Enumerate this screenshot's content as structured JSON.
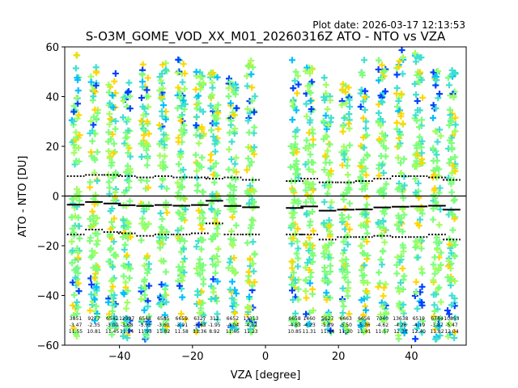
{
  "plot_date": "Plot date: 2026-03-17 12:13:53",
  "chart_data": {
    "type": "scatter",
    "title": "S-O3M_GOME_VOD_XX_M01_20260316Z ATO - NTO vs VZA",
    "xlabel": "VZA [degree]",
    "ylabel": "ATO - NTO [DU]",
    "xlim": [
      -55,
      55
    ],
    "ylim": [
      -60,
      60
    ],
    "xticks": [
      -40,
      -20,
      0,
      20,
      40
    ],
    "yticks": [
      -60,
      -40,
      -20,
      0,
      20,
      40,
      60
    ],
    "grid": false,
    "marker": "plus",
    "point_colors": [
      "#7cff79",
      "#ffd700",
      "#40e0d0",
      "#00bfff",
      "#0040ff",
      "#00008b",
      "#a0ff60"
    ],
    "bins": [
      {
        "x": -52,
        "count": "3851",
        "mean": "-3.47",
        "std": "11.55",
        "median": -3.5,
        "upper": 8.0,
        "lower": -15.5,
        "ymin": -58,
        "ymax": 57
      },
      {
        "x": -47,
        "count": "9277",
        "mean": "-2.35",
        "std": "10.81",
        "median": -2.4,
        "upper": 8.5,
        "lower": -13.5,
        "ymin": -52,
        "ymax": 52
      },
      {
        "x": -42,
        "count": "6542",
        "mean": "-3.00",
        "std": "11.45",
        "median": -3.0,
        "upper": 8.5,
        "lower": -14.5,
        "ymin": -56,
        "ymax": 53
      },
      {
        "x": -38,
        "count": "12997",
        "mean": "-3.68",
        "std": "11.54",
        "median": -3.7,
        "upper": 8.0,
        "lower": -15.0,
        "ymin": -58,
        "ymax": 46
      },
      {
        "x": -33,
        "count": "6548",
        "mean": "-3.95",
        "std": "11.93",
        "median": -4.0,
        "upper": 7.5,
        "lower": -16.0,
        "ymin": -58,
        "ymax": 55
      },
      {
        "x": -28,
        "count": "6585",
        "mean": "-3.60",
        "std": "11.82",
        "median": -3.6,
        "upper": 8.0,
        "lower": -15.5,
        "ymin": -55,
        "ymax": 54
      },
      {
        "x": -23,
        "count": "6659",
        "mean": "-3.91",
        "std": "11.58",
        "median": -3.9,
        "upper": 7.5,
        "lower": -15.5,
        "ymin": -55,
        "ymax": 56
      },
      {
        "x": -18,
        "count": "6327",
        "mean": "-3.63",
        "std": "11.36",
        "median": -3.6,
        "upper": 7.5,
        "lower": -15.0,
        "ymin": -55,
        "ymax": 50
      },
      {
        "x": -14,
        "count": "312",
        "mean": "-1.95",
        "std": "8.92",
        "median": -1.9,
        "upper": 7.0,
        "lower": -11.0,
        "ymin": -50,
        "ymax": 50
      },
      {
        "x": -9,
        "count": "6652",
        "mean": "-4.04",
        "std": "11.65",
        "median": -4.0,
        "upper": 7.5,
        "lower": -15.5,
        "ymin": -55,
        "ymax": 48
      },
      {
        "x": -4,
        "count": "13313",
        "mean": "-4.52",
        "std": "11.23",
        "median": -4.5,
        "upper": 6.5,
        "lower": -15.5,
        "ymin": -55,
        "ymax": 55
      },
      {
        "x": 8,
        "count": "6658",
        "mean": "-4.83",
        "std": "10.85",
        "median": -4.8,
        "upper": 6.0,
        "lower": -15.5,
        "ymin": -55,
        "ymax": 55
      },
      {
        "x": 12,
        "count": "1460",
        "mean": "-4.23",
        "std": "11.31",
        "median": -4.2,
        "upper": 7.0,
        "lower": -15.5,
        "ymin": -52,
        "ymax": 52
      },
      {
        "x": 17,
        "count": "5627",
        "mean": "-5.89",
        "std": "11.44",
        "median": -5.9,
        "upper": 5.5,
        "lower": -17.5,
        "ymin": -55,
        "ymax": 48
      },
      {
        "x": 22,
        "count": "6663",
        "mean": "-5.50",
        "std": "11.20",
        "median": -5.5,
        "upper": 5.5,
        "lower": -16.5,
        "ymin": -55,
        "ymax": 48
      },
      {
        "x": 27,
        "count": "6656",
        "mean": "-5.36",
        "std": "11.41",
        "median": -5.4,
        "upper": 6.0,
        "lower": -16.5,
        "ymin": -55,
        "ymax": 55
      },
      {
        "x": 32,
        "count": "7040",
        "mean": "-4.62",
        "std": "11.57",
        "median": -4.6,
        "upper": 7.0,
        "lower": -16.0,
        "ymin": -55,
        "ymax": 55
      },
      {
        "x": 37,
        "count": "13638",
        "mean": "-4.26",
        "std": "12.38",
        "median": -4.3,
        "upper": 8.0,
        "lower": -16.5,
        "ymin": -58,
        "ymax": 60
      },
      {
        "x": 42,
        "count": "6519",
        "mean": "-4.19",
        "std": "12.40",
        "median": -4.2,
        "upper": 8.0,
        "lower": -16.5,
        "ymin": -58,
        "ymax": 58
      },
      {
        "x": 47,
        "count": "6744",
        "mean": "-3.87",
        "std": "11.82",
        "median": -3.9,
        "upper": 7.5,
        "lower": -15.5,
        "ymin": -58,
        "ymax": 52
      },
      {
        "x": 51,
        "count": "10853",
        "mean": "-5.47",
        "std": "12.04",
        "median": -5.5,
        "upper": 6.5,
        "lower": -17.5,
        "ymin": -58,
        "ymax": 52
      }
    ]
  }
}
